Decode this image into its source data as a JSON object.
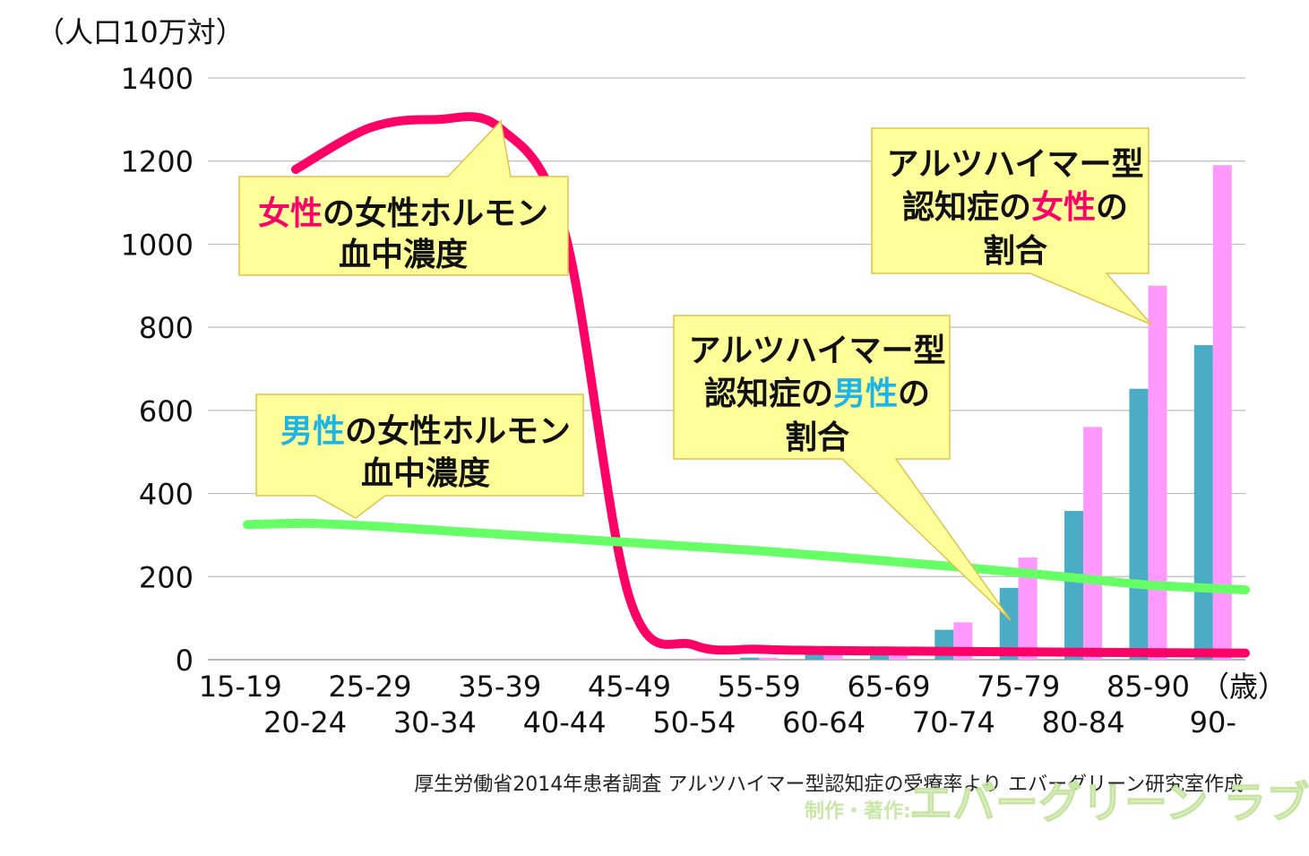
{
  "chart_data": {
    "type": "bar",
    "ylabel": "（人口10万対）",
    "xunit": "（歳）",
    "ylim": [
      0,
      1400
    ],
    "yticks": [
      0,
      200,
      400,
      600,
      800,
      1000,
      1200,
      1400
    ],
    "grid": true,
    "categories": [
      "15-19",
      "20-24",
      "25-29",
      "30-34",
      "35-39",
      "40-44",
      "45-49",
      "50-54",
      "55-59",
      "60-64",
      "65-69",
      "70-74",
      "75-79",
      "80-84",
      "85-90",
      "90-"
    ],
    "series": [
      {
        "key": "male_alz",
        "values": [
          0,
          0,
          0,
          0,
          0,
          0,
          0,
          0,
          5,
          20,
          30,
          72,
          173,
          358,
          652,
          757
        ]
      },
      {
        "key": "female_alz",
        "values": [
          0,
          0,
          0,
          0,
          0,
          0,
          0,
          3,
          5,
          13,
          30,
          90,
          246,
          560,
          900,
          1190
        ]
      }
    ],
    "lines": [
      {
        "key": "female_hormone",
        "x": [
          1,
          2,
          3,
          4,
          5,
          6,
          7,
          8,
          9,
          10,
          11,
          12,
          13,
          14,
          15
        ],
        "values": [
          1180,
          1280,
          1300,
          1280,
          1030,
          150,
          35,
          25,
          22,
          21,
          20,
          19,
          18,
          17,
          16
        ]
      },
      {
        "key": "male_hormone",
        "x": [
          0,
          1,
          2,
          3,
          4,
          5,
          6,
          7,
          8,
          9,
          10,
          11,
          12,
          13,
          14,
          15
        ],
        "values": [
          325,
          328,
          322,
          312,
          302,
          292,
          282,
          272,
          262,
          250,
          237,
          224,
          210,
          195,
          180,
          168
        ]
      }
    ],
    "colors": {
      "male_bar": "#4bacc6",
      "female_bar": "#ff99ff",
      "female_line": "#ff0066",
      "male_line": "#66ff66",
      "callout_fill": "#ffff99",
      "callout_stroke": "#e0c050"
    },
    "annotations": {
      "female_hormone": {
        "highlight": "女性",
        "rest_line1": "の女性ホルモン",
        "line2": "血中濃度"
      },
      "male_hormone": {
        "highlight": "男性",
        "rest_line1": "の女性ホルモン",
        "line2": "血中濃度"
      },
      "alz_male": {
        "line1": "アルツハイマー型",
        "line2_pre": "認知症の",
        "highlight": "男性",
        "line2_post": "の",
        "line3": "割合"
      },
      "alz_female": {
        "line1": "アルツハイマー型",
        "line2_pre": "認知症の",
        "highlight": "女性",
        "line2_post": "の",
        "line3": "割合"
      }
    },
    "highlight_colors": {
      "female": "#ff0066",
      "male": "#1eb4e6"
    }
  },
  "source": "厚生労働省2014年患者調査 アルツハイマー型認知症の受療率より エバーグリーン研究室作成",
  "watermark": {
    "small": "制作・著作:",
    "large": "エバーグリーン ラブ"
  }
}
